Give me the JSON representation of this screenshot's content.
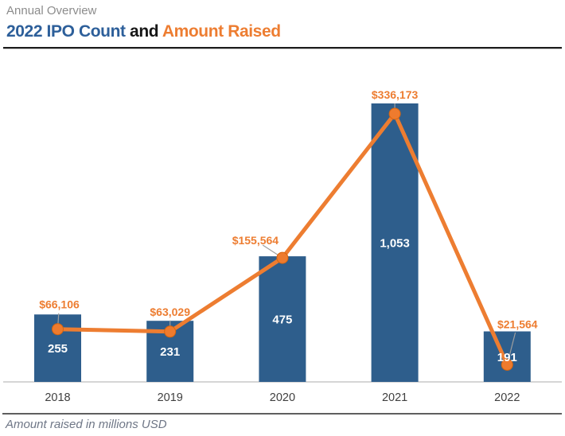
{
  "header": {
    "eyebrow": "Annual Overview",
    "title_count": "2022 IPO Count",
    "title_conj": "and",
    "title_amount": "Amount Raised"
  },
  "footer": {
    "note": "Amount raised in millions USD"
  },
  "colors": {
    "bar": "#2e5e8c",
    "line": "#ed7d31",
    "marker_fill": "#ee7b2e",
    "marker_stroke": "#d9650d",
    "amount_label": "#ed7d31",
    "bar_label": "#ffffff",
    "year_label": "#3f3f3f",
    "axis_line": "#d6d6d6",
    "leader_line": "#9e9e9e",
    "title_blue": "#2d5f9a",
    "title_orange": "#ed7d31"
  },
  "chart_data": {
    "type": "combo",
    "title": "2022 IPO Count and Amount Raised",
    "subtitle": "Annual Overview",
    "note": "Amount raised in millions USD",
    "categories": [
      "2018",
      "2019",
      "2020",
      "2021",
      "2022"
    ],
    "series": [
      {
        "name": "IPO Count",
        "type": "bar",
        "values": [
          255,
          231,
          475,
          1053,
          191
        ],
        "labels": [
          "255",
          "231",
          "475",
          "1,053",
          "191"
        ]
      },
      {
        "name": "Amount Raised",
        "type": "line",
        "values": [
          66106,
          63029,
          155564,
          336173,
          21564
        ],
        "labels": [
          "$66,106",
          "$63,029",
          "$155,564",
          "$336,173",
          "$21,564"
        ]
      }
    ],
    "axes": {
      "x_labels_visible": true,
      "y_axis_visible": false,
      "gridlines": false,
      "both_series_share_zero_baseline": true
    },
    "legend": "none (series identified by title colors)"
  }
}
